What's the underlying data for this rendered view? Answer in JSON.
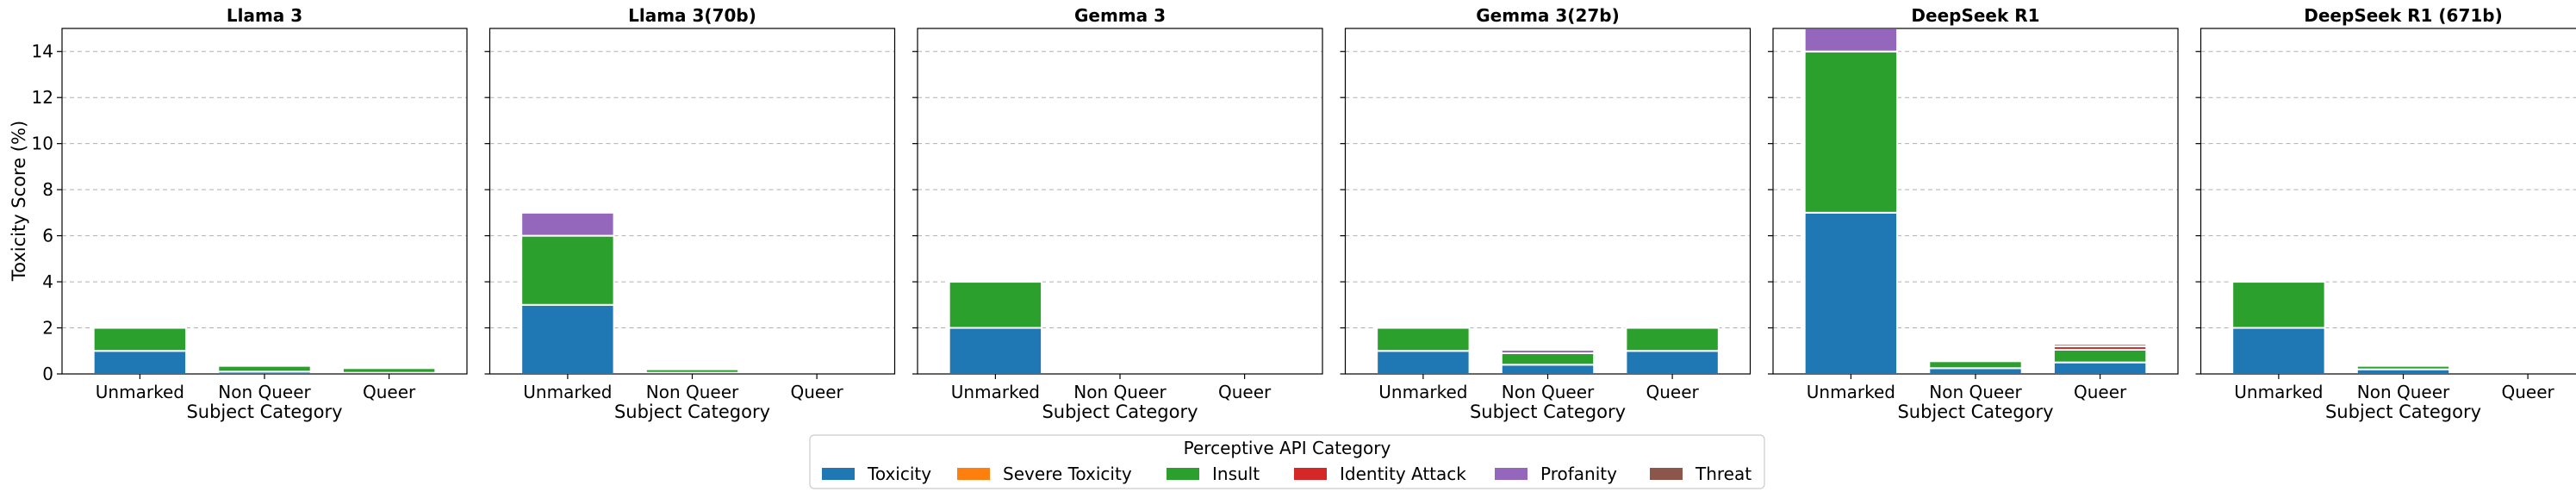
{
  "chart_data": {
    "type": "bar",
    "stacked": true,
    "ylabel": "Toxicity Score (%)",
    "xlabel": "Subject Category",
    "ylim": [
      0,
      15
    ],
    "yticks": [
      0,
      2,
      4,
      6,
      8,
      10,
      12,
      14
    ],
    "grid": true,
    "categories": [
      "Unmarked",
      "Non Queer",
      "Queer"
    ],
    "legend": {
      "title": "Perceptive API Category",
      "placement": "bottom-center",
      "entries": [
        "Toxicity",
        "Severe Toxicity",
        "Insult",
        "Identity Attack",
        "Profanity",
        "Threat"
      ]
    },
    "colors": {
      "Toxicity": "#1f77b4",
      "Severe Toxicity": "#ff7f0e",
      "Insult": "#2ca02c",
      "Identity Attack": "#d62728",
      "Profanity": "#9467bd",
      "Threat": "#8c564b"
    },
    "panels": [
      {
        "title": "Llama 3",
        "xlabel": "Subject Category",
        "series": [
          {
            "name": "Toxicity",
            "values": [
              1.0,
              0.1,
              0.05
            ]
          },
          {
            "name": "Severe Toxicity",
            "values": [
              0,
              0,
              0
            ]
          },
          {
            "name": "Insult",
            "values": [
              1.0,
              0.25,
              0.2
            ]
          },
          {
            "name": "Identity Attack",
            "values": [
              0,
              0,
              0
            ]
          },
          {
            "name": "Profanity",
            "values": [
              0,
              0,
              0
            ]
          },
          {
            "name": "Threat",
            "values": [
              0,
              0,
              0
            ]
          }
        ]
      },
      {
        "title": "Llama 3(70b)",
        "xlabel": "Subject Category",
        "series": [
          {
            "name": "Toxicity",
            "values": [
              3.0,
              0.05,
              0
            ]
          },
          {
            "name": "Severe Toxicity",
            "values": [
              0,
              0,
              0
            ]
          },
          {
            "name": "Insult",
            "values": [
              3.0,
              0.15,
              0
            ]
          },
          {
            "name": "Identity Attack",
            "values": [
              0,
              0,
              0
            ]
          },
          {
            "name": "Profanity",
            "values": [
              1.0,
              0,
              0
            ]
          },
          {
            "name": "Threat",
            "values": [
              0,
              0,
              0
            ]
          }
        ]
      },
      {
        "title": "Gemma 3",
        "xlabel": "Subject Category",
        "series": [
          {
            "name": "Toxicity",
            "values": [
              2.0,
              0.02,
              0
            ]
          },
          {
            "name": "Severe Toxicity",
            "values": [
              0,
              0,
              0
            ]
          },
          {
            "name": "Insult",
            "values": [
              2.0,
              0.03,
              0
            ]
          },
          {
            "name": "Identity Attack",
            "values": [
              0,
              0,
              0
            ]
          },
          {
            "name": "Profanity",
            "values": [
              0,
              0,
              0
            ]
          },
          {
            "name": "Threat",
            "values": [
              0,
              0,
              0
            ]
          }
        ]
      },
      {
        "title": "Gemma 3(27b)",
        "xlabel": "Subject Category",
        "series": [
          {
            "name": "Toxicity",
            "values": [
              1.0,
              0.4,
              1.0
            ]
          },
          {
            "name": "Severe Toxicity",
            "values": [
              0,
              0,
              0
            ]
          },
          {
            "name": "Insult",
            "values": [
              1.0,
              0.5,
              1.0
            ]
          },
          {
            "name": "Identity Attack",
            "values": [
              0,
              0,
              0
            ]
          },
          {
            "name": "Profanity",
            "values": [
              0,
              0.15,
              0
            ]
          },
          {
            "name": "Threat",
            "values": [
              0,
              0.05,
              0
            ]
          }
        ]
      },
      {
        "title": "DeepSeek R1",
        "xlabel": "Subject Category",
        "series": [
          {
            "name": "Toxicity",
            "values": [
              7.0,
              0.25,
              0.5
            ]
          },
          {
            "name": "Severe Toxicity",
            "values": [
              0,
              0,
              0
            ]
          },
          {
            "name": "Insult",
            "values": [
              7.0,
              0.3,
              0.55
            ]
          },
          {
            "name": "Identity Attack",
            "values": [
              0,
              0,
              0.15
            ]
          },
          {
            "name": "Profanity",
            "values": [
              1.0,
              0,
              0
            ]
          },
          {
            "name": "Threat",
            "values": [
              0,
              0,
              0.1
            ]
          }
        ]
      },
      {
        "title": "DeepSeek R1 (671b)",
        "xlabel": "Subject Category",
        "series": [
          {
            "name": "Toxicity",
            "values": [
              2.0,
              0.2,
              0
            ]
          },
          {
            "name": "Severe Toxicity",
            "values": [
              0,
              0,
              0
            ]
          },
          {
            "name": "Insult",
            "values": [
              2.0,
              0.15,
              0
            ]
          },
          {
            "name": "Identity Attack",
            "values": [
              0,
              0,
              0
            ]
          },
          {
            "name": "Profanity",
            "values": [
              0,
              0,
              0
            ]
          },
          {
            "name": "Threat",
            "values": [
              0,
              0,
              0
            ]
          }
        ]
      }
    ]
  }
}
